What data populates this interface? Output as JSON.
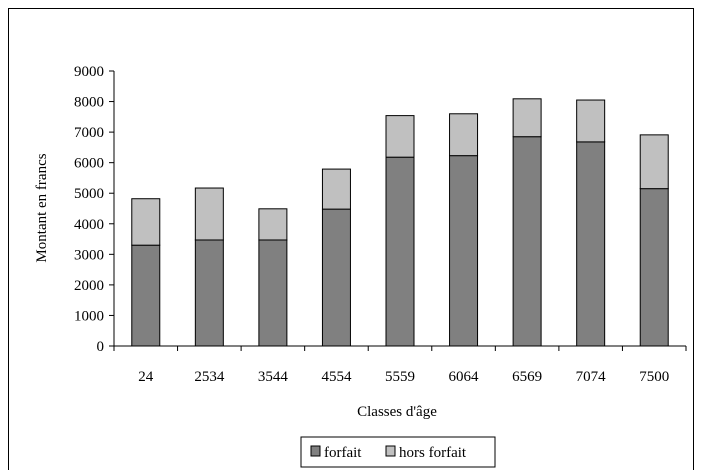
{
  "chart_data": {
    "type": "bar",
    "stacked": true,
    "categories": [
      "24",
      "2534",
      "3544",
      "4554",
      "5559",
      "6064",
      "6569",
      "7074",
      "7500"
    ],
    "series": [
      {
        "name": "forfait",
        "color": "#808080",
        "values": [
          3300,
          3470,
          3470,
          4480,
          6180,
          6230,
          6850,
          6680,
          5150
        ]
      },
      {
        "name": "hors forfait",
        "color": "#c0c0c0",
        "values": [
          1520,
          1700,
          1020,
          1310,
          1360,
          1370,
          1240,
          1370,
          1760
        ]
      }
    ],
    "title": "",
    "xlabel": "Classes d'âge",
    "ylabel": "Montant en francs",
    "ylim": [
      0,
      9000
    ],
    "yticks": [
      "0",
      "1000",
      "2000",
      "3000",
      "4000",
      "5000",
      "6000",
      "7000",
      "8000",
      "9000"
    ],
    "grid": false,
    "legend_position": "bottom"
  }
}
